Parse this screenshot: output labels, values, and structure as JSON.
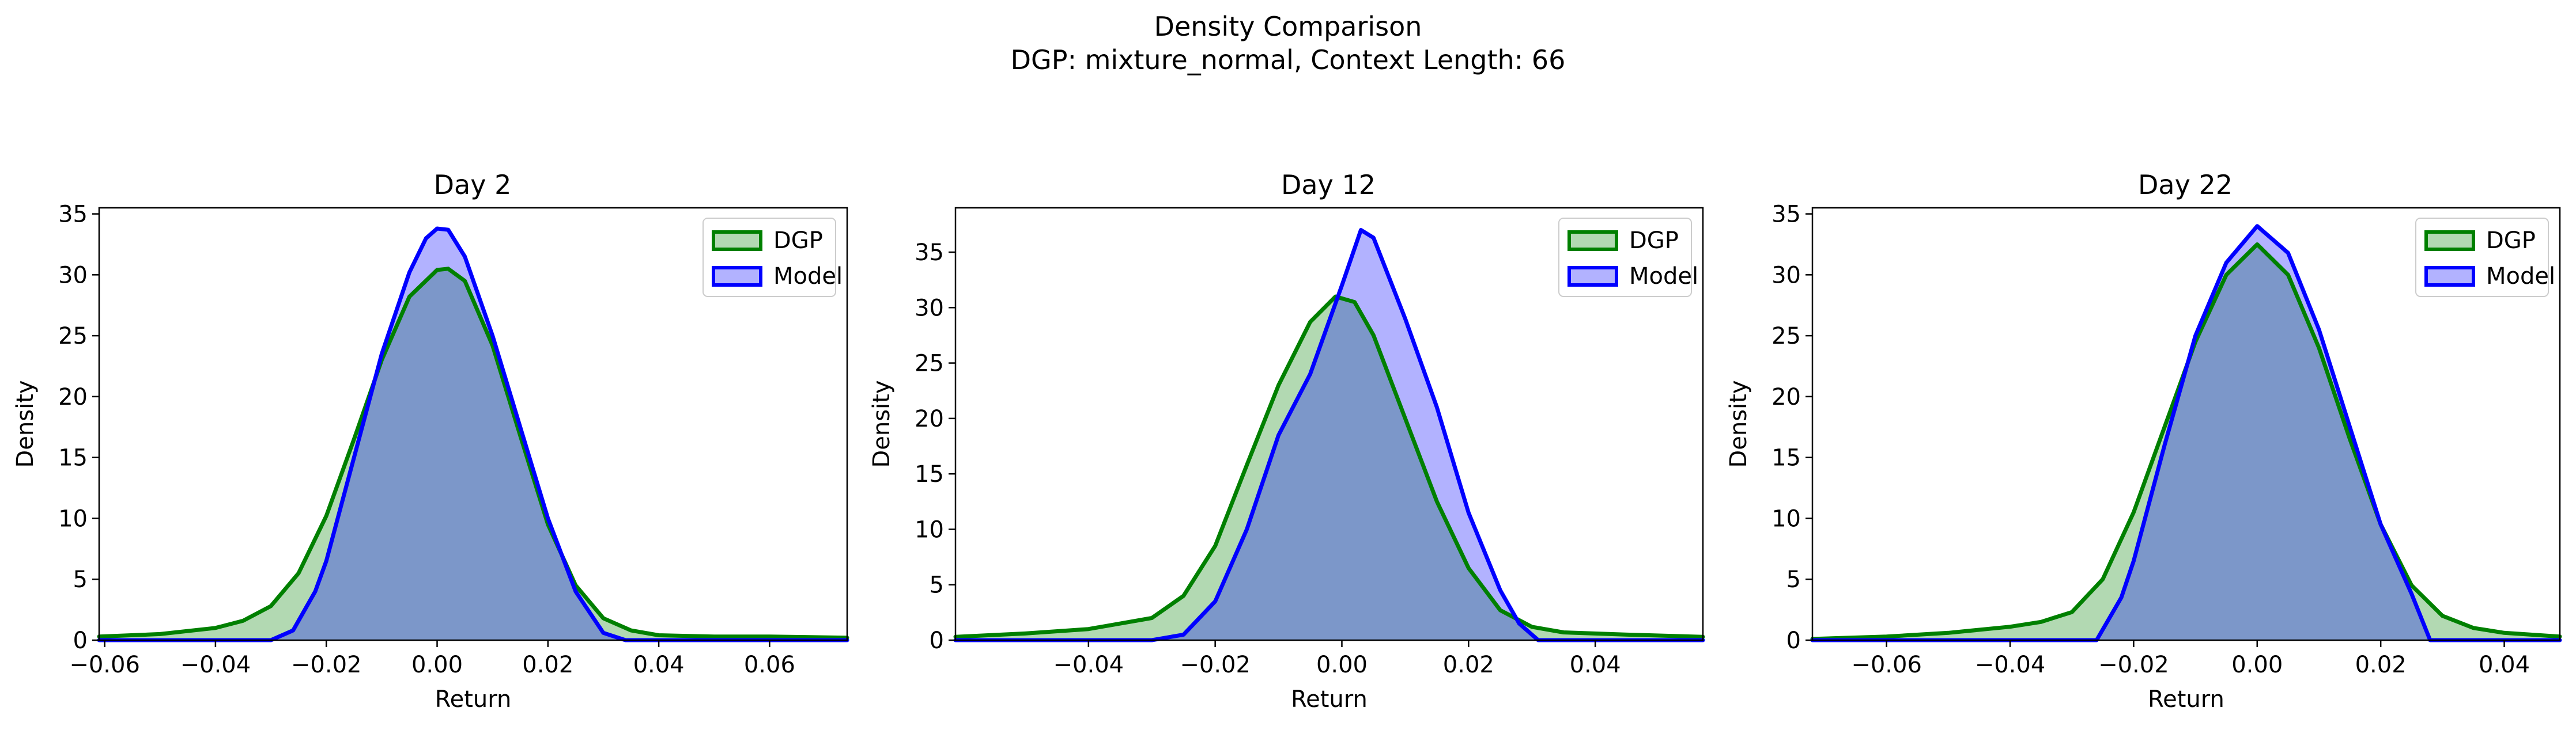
{
  "figure": {
    "title_line1": "Density Comparison",
    "title_line2": "DGP: mixture_normal, Context Length: 66"
  },
  "colors": {
    "dgp_line": "#008000",
    "dgp_fill": "#008000",
    "model_line": "#0000ff",
    "model_fill": "#0000ff",
    "fill_alpha": 0.3
  },
  "chart_data": [
    {
      "type": "area",
      "title": "Day 2",
      "xlabel": "Return",
      "ylabel": "Density",
      "xlim": [
        -0.061,
        0.074
      ],
      "ylim": [
        0,
        35.5
      ],
      "xticks": [
        -0.06,
        -0.04,
        -0.02,
        0.0,
        0.02,
        0.04,
        0.06
      ],
      "xtick_labels": [
        "−0.06",
        "−0.04",
        "−0.02",
        "0.00",
        "0.02",
        "0.04",
        "0.06"
      ],
      "yticks": [
        0,
        5,
        10,
        15,
        20,
        25,
        30,
        35
      ],
      "legend": "top-right",
      "series": [
        {
          "name": "DGP",
          "x": [
            -0.061,
            -0.05,
            -0.04,
            -0.035,
            -0.03,
            -0.025,
            -0.02,
            -0.015,
            -0.01,
            -0.005,
            0.0,
            0.002,
            0.005,
            0.01,
            0.015,
            0.02,
            0.025,
            0.03,
            0.035,
            0.04,
            0.05,
            0.06,
            0.074
          ],
          "y": [
            0.3,
            0.5,
            1.0,
            1.6,
            2.8,
            5.5,
            10.2,
            16.5,
            23.0,
            28.2,
            30.4,
            30.5,
            29.5,
            24.2,
            16.8,
            9.5,
            4.5,
            1.8,
            0.8,
            0.4,
            0.3,
            0.3,
            0.2
          ]
        },
        {
          "name": "Model",
          "x": [
            -0.061,
            -0.03,
            -0.026,
            -0.022,
            -0.02,
            -0.015,
            -0.01,
            -0.005,
            -0.002,
            0.0,
            0.002,
            0.005,
            0.01,
            0.015,
            0.02,
            0.025,
            0.03,
            0.034,
            0.074
          ],
          "y": [
            0,
            0,
            0.8,
            4.0,
            6.5,
            15.0,
            23.5,
            30.2,
            33.0,
            33.8,
            33.7,
            31.5,
            25.0,
            17.5,
            10.0,
            4.0,
            0.6,
            0,
            0
          ]
        }
      ]
    },
    {
      "type": "area",
      "title": "Day 12",
      "xlabel": "Return",
      "ylabel": "Density",
      "xlim": [
        -0.061,
        0.057
      ],
      "ylim": [
        0,
        39
      ],
      "xticks": [
        -0.04,
        -0.02,
        0.0,
        0.02,
        0.04
      ],
      "xtick_labels": [
        "−0.04",
        "−0.02",
        "0.00",
        "0.02",
        "0.04"
      ],
      "yticks": [
        0,
        5,
        10,
        15,
        20,
        25,
        30,
        35
      ],
      "legend": "top-right",
      "series": [
        {
          "name": "DGP",
          "x": [
            -0.061,
            -0.05,
            -0.04,
            -0.03,
            -0.025,
            -0.02,
            -0.015,
            -0.01,
            -0.005,
            -0.001,
            0.002,
            0.005,
            0.01,
            0.015,
            0.02,
            0.025,
            0.03,
            0.035,
            0.045,
            0.057
          ],
          "y": [
            0.3,
            0.6,
            1.0,
            2.0,
            4.0,
            8.5,
            15.8,
            23.0,
            28.7,
            31.0,
            30.5,
            27.5,
            20.0,
            12.5,
            6.5,
            2.7,
            1.2,
            0.7,
            0.5,
            0.3
          ]
        },
        {
          "name": "Model",
          "x": [
            -0.061,
            -0.03,
            -0.025,
            -0.02,
            -0.015,
            -0.01,
            -0.005,
            0.0,
            0.003,
            0.005,
            0.01,
            0.015,
            0.02,
            0.025,
            0.028,
            0.031,
            0.057
          ],
          "y": [
            0,
            0,
            0.5,
            3.5,
            10.0,
            18.5,
            24.0,
            32.0,
            37.0,
            36.3,
            29.0,
            21.0,
            11.5,
            4.5,
            1.5,
            0,
            0
          ]
        }
      ]
    },
    {
      "type": "area",
      "title": "Day 22",
      "xlabel": "Return",
      "ylabel": "Density",
      "xlim": [
        -0.072,
        0.049
      ],
      "ylim": [
        0,
        35.5
      ],
      "xticks": [
        -0.06,
        -0.04,
        -0.02,
        0.0,
        0.02,
        0.04
      ],
      "xtick_labels": [
        "−0.06",
        "−0.04",
        "−0.02",
        "0.00",
        "0.02",
        "0.04"
      ],
      "yticks": [
        0,
        5,
        10,
        15,
        20,
        25,
        30,
        35
      ],
      "legend": "top-right",
      "series": [
        {
          "name": "DGP",
          "x": [
            -0.072,
            -0.06,
            -0.05,
            -0.04,
            -0.035,
            -0.03,
            -0.025,
            -0.02,
            -0.015,
            -0.01,
            -0.005,
            0.0,
            0.005,
            0.01,
            0.015,
            0.02,
            0.025,
            0.03,
            0.035,
            0.04,
            0.049
          ],
          "y": [
            0.1,
            0.3,
            0.6,
            1.1,
            1.5,
            2.3,
            5.0,
            10.5,
            17.5,
            24.5,
            30.0,
            32.5,
            30.0,
            24.0,
            16.5,
            9.5,
            4.5,
            2.0,
            1.0,
            0.6,
            0.3
          ]
        },
        {
          "name": "Model",
          "x": [
            -0.072,
            -0.026,
            -0.022,
            -0.02,
            -0.015,
            -0.01,
            -0.005,
            0.0,
            0.005,
            0.01,
            0.015,
            0.02,
            0.025,
            0.028,
            0.049
          ],
          "y": [
            0,
            0,
            3.5,
            6.5,
            16.0,
            25.0,
            31.0,
            34.0,
            31.8,
            25.5,
            17.5,
            9.5,
            3.8,
            0,
            0
          ]
        }
      ]
    }
  ]
}
